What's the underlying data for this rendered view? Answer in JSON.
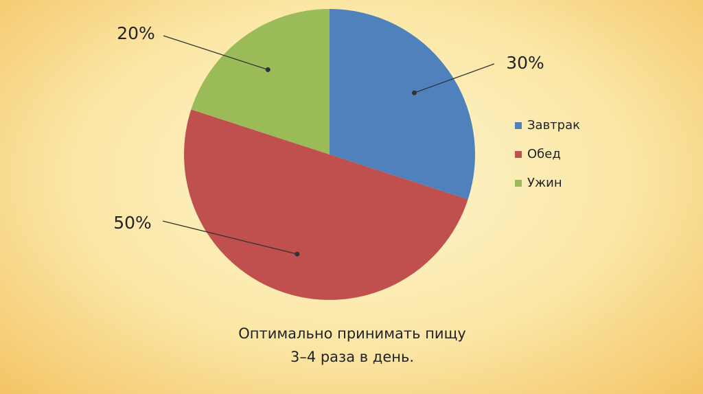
{
  "chart_data": {
    "type": "pie",
    "categories": [
      "Завтрак",
      "Обед",
      "Ужин"
    ],
    "values": [
      30,
      50,
      20
    ],
    "value_labels": [
      "30%",
      "50%",
      "20%"
    ],
    "colors": [
      "#4f81bd",
      "#c0504d",
      "#9bbb59"
    ],
    "legend": "right",
    "caption": [
      "Оптимально принимать пищу",
      "3–4 раза в день."
    ]
  }
}
